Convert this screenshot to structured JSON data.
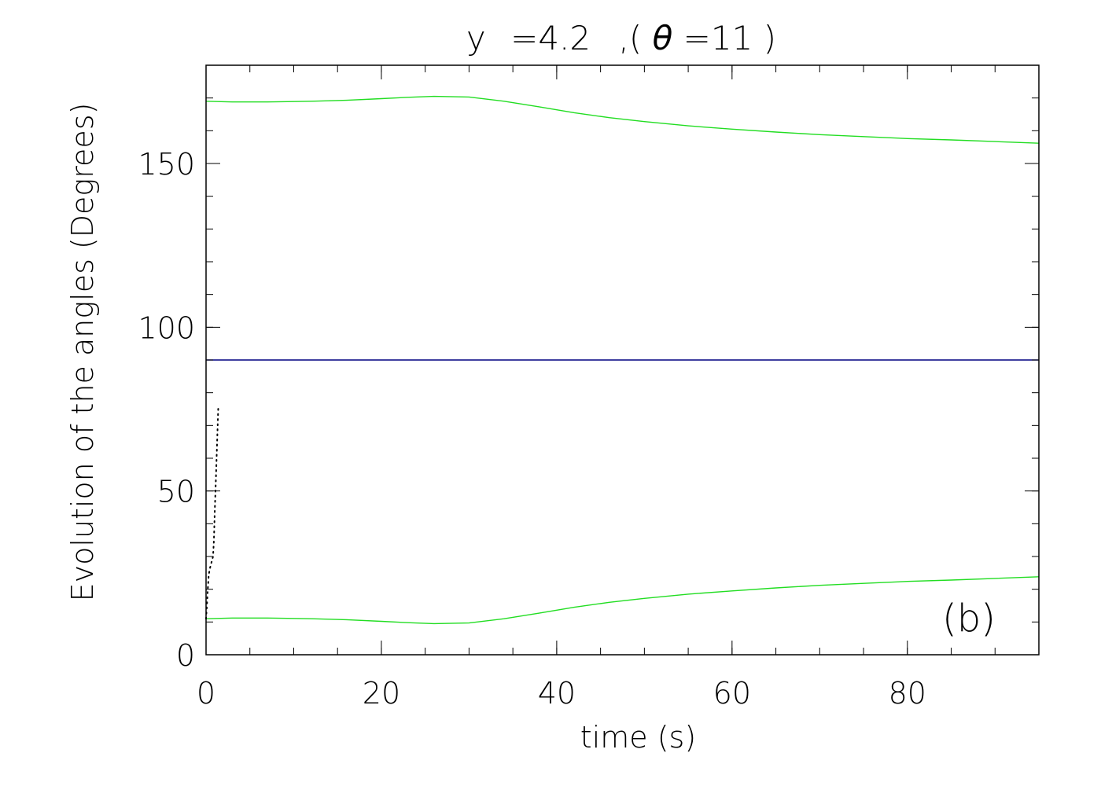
{
  "chart_data": {
    "type": "line",
    "title_parts": {
      "lhs": "y",
      "eq": "=4.2",
      "sep": ",(",
      "theta": "θ",
      "theta_eq": "=11",
      "close": ")"
    },
    "xlabel": "time (s)",
    "ylabel": "Evolution of the angles (Degrees)",
    "panel_label": "(b)",
    "xlim": [
      0,
      95
    ],
    "ylim": [
      0,
      180
    ],
    "xticks": [
      0,
      20,
      40,
      60,
      80
    ],
    "xtick_labels": [
      "0",
      "20",
      "40",
      "60",
      "80"
    ],
    "yticks": [
      0,
      50,
      100,
      150
    ],
    "ytick_labels": [
      "0",
      "50",
      "100",
      "150"
    ],
    "x_minor_step": 5,
    "y_minor_step": 10,
    "grid": false,
    "series": [
      {
        "color": "#22dd22",
        "style": "solid",
        "x": [
          0,
          3,
          7,
          12,
          16,
          20,
          23,
          26,
          30,
          34,
          38,
          42,
          46,
          50,
          55,
          60,
          65,
          70,
          75,
          80,
          85,
          90,
          95
        ],
        "y": [
          169,
          168.8,
          168.8,
          169,
          169.3,
          169.8,
          170.2,
          170.5,
          170.3,
          169,
          167.3,
          165.5,
          164,
          162.8,
          161.5,
          160.5,
          159.6,
          158.8,
          158.2,
          157.6,
          157.2,
          156.7,
          156.2
        ]
      },
      {
        "color": "#22dd22",
        "style": "solid",
        "x": [
          0,
          3,
          7,
          12,
          16,
          20,
          23,
          26,
          30,
          34,
          38,
          42,
          46,
          50,
          55,
          60,
          65,
          70,
          75,
          80,
          85,
          90,
          95
        ],
        "y": [
          11,
          11.2,
          11.2,
          11,
          10.7,
          10.2,
          9.8,
          9.5,
          9.7,
          11,
          12.7,
          14.5,
          16,
          17.2,
          18.5,
          19.5,
          20.4,
          21.2,
          21.8,
          22.4,
          22.8,
          23.3,
          23.8
        ]
      },
      {
        "color": "#000080",
        "style": "solid",
        "x": [
          0,
          95
        ],
        "y": [
          90,
          90
        ]
      },
      {
        "color": "#000000",
        "style": "dotted",
        "x": [
          0,
          0.1,
          0.2,
          0.3,
          0.4,
          0.5,
          0.6,
          0.7,
          0.8,
          0.9,
          1.0,
          1.1,
          1.2,
          1.3,
          1.4
        ],
        "y": [
          11,
          15,
          20,
          24,
          26,
          27,
          28,
          29,
          30,
          35,
          44,
          52,
          60,
          68,
          76
        ]
      }
    ]
  }
}
